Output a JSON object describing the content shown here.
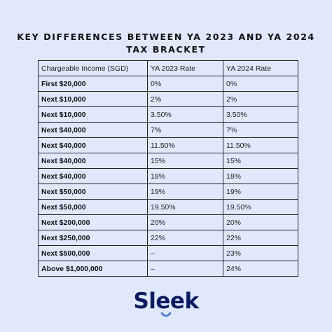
{
  "title": {
    "line1": "KEY DIFFERENCES BETWEEN YA 2023 AND YA 2024",
    "line2": "TAX BRACKET"
  },
  "table": {
    "headers": [
      "Chargeable Income (SGD)",
      "YA 2023 Rate",
      "YA 2024 Rate"
    ],
    "rows": [
      [
        "First $20,000",
        "0%",
        "0%"
      ],
      [
        "Next $10,000",
        "2%",
        "2%"
      ],
      [
        "Next $10,000",
        "3.50%",
        "3.50%"
      ],
      [
        "Next $40,000",
        "7%",
        "7%"
      ],
      [
        "Next $40,000",
        "11.50%",
        "11.50%"
      ],
      [
        "Next $40,000",
        "15%",
        "15%"
      ],
      [
        "Next $40,000",
        "18%",
        "18%"
      ],
      [
        "Next $50,000",
        "19%",
        "19%"
      ],
      [
        "Next $50,000",
        "19.50%",
        "19.50%"
      ],
      [
        "Next $200,000",
        "20%",
        "20%"
      ],
      [
        "Next $250,000",
        "22%",
        "22%"
      ],
      [
        "Next $500,000",
        "–",
        "23%"
      ],
      [
        "Above $1,000,000",
        "–",
        "24%"
      ]
    ]
  },
  "logo": {
    "text": "Sleek",
    "color": "#0a1a66",
    "accent_color": "#3b6cf5"
  },
  "colors": {
    "background": "#dfe9fb",
    "border": "#222222"
  }
}
